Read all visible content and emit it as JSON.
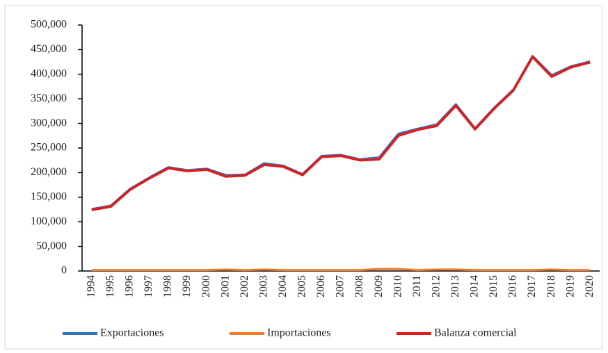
{
  "chart_data": {
    "type": "line",
    "categories": [
      "1994",
      "1995",
      "1996",
      "1997",
      "1998",
      "1999",
      "2000",
      "2001",
      "2002",
      "2003",
      "2004",
      "2005",
      "2006",
      "2007",
      "2008",
      "2009",
      "2010",
      "2011",
      "2012",
      "2013",
      "2014",
      "2015",
      "2016",
      "2017",
      "2018",
      "2019",
      "2020"
    ],
    "series": [
      {
        "name": "Exportaciones",
        "color": "#2e75b6",
        "values": [
          126000,
          133000,
          167000,
          190000,
          211000,
          205000,
          208000,
          195000,
          196000,
          219000,
          214000,
          197000,
          234000,
          236000,
          227000,
          231000,
          279000,
          289000,
          298000,
          339000,
          290000,
          332000,
          369000,
          437000,
          398000,
          416000,
          426000
        ]
      },
      {
        "name": "Importaciones",
        "color": "#ed7d31",
        "values": [
          2000,
          2000,
          2000,
          2000,
          2000,
          2000,
          2000,
          3000,
          2000,
          3000,
          2000,
          2000,
          2000,
          2000,
          2000,
          4000,
          4000,
          2000,
          3000,
          3000,
          2000,
          2000,
          2000,
          2000,
          3000,
          2000,
          2000
        ]
      },
      {
        "name": "Balanza comercial",
        "color": "#e31a1c",
        "values": [
          124000,
          131000,
          165000,
          188000,
          209000,
          203000,
          206000,
          192000,
          194000,
          216000,
          212000,
          195000,
          232000,
          234000,
          225000,
          227000,
          275000,
          287000,
          295000,
          336000,
          288000,
          330000,
          367000,
          435000,
          395000,
          414000,
          424000
        ]
      }
    ],
    "ylim": [
      0,
      500000
    ],
    "yticks": [
      0,
      {
        "value": 50000,
        "label": "50,000"
      },
      {
        "value": 100000,
        "label": "100,000"
      },
      {
        "value": 150000,
        "label": "150,000"
      },
      {
        "value": 200000,
        "label": "200,000"
      },
      {
        "value": 250000,
        "label": "250,000"
      },
      {
        "value": 300000,
        "label": "300,000"
      },
      {
        "value": 350000,
        "label": "350,000"
      },
      {
        "value": 400000,
        "label": "400,000"
      },
      {
        "value": 450000,
        "label": "450,000"
      },
      {
        "value": 500000,
        "label": "500,000"
      }
    ],
    "legend": "bottom"
  }
}
